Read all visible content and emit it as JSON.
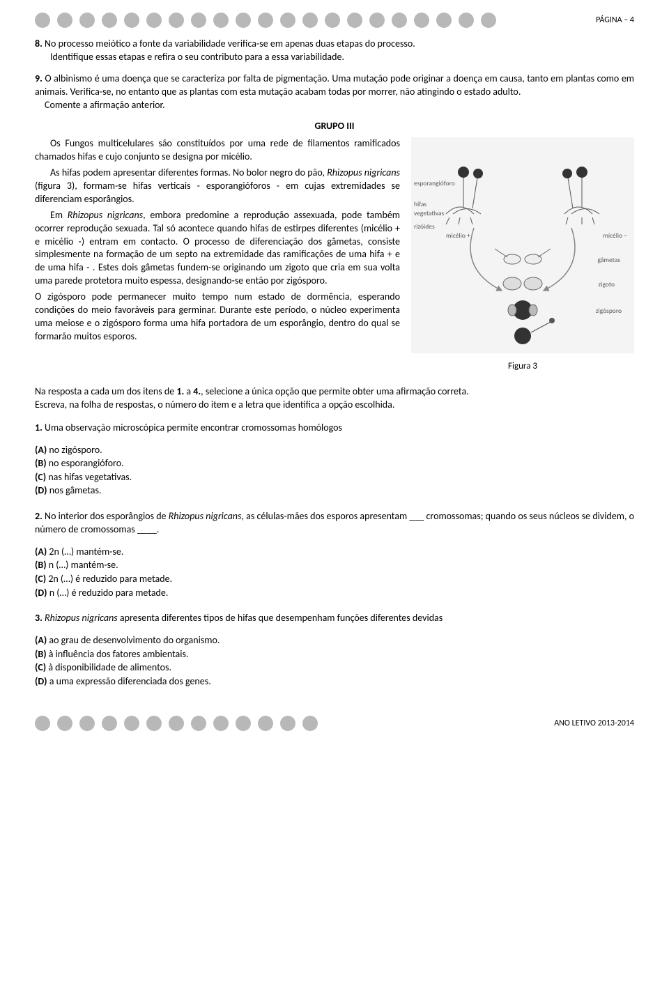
{
  "header": {
    "page_label": "PÁGINA – 4",
    "dot_color": "#b8b8b8",
    "top_dot_count": 21,
    "bottom_dot_count": 13
  },
  "questions_top": {
    "q8": {
      "num": "8.",
      "line1": "No processo meiótico a fonte da variabilidade verifica-se em apenas duas etapas do processo.",
      "line2": "Identifique essas etapas e refira o seu contributo para a essa variabilidade."
    },
    "q9": {
      "num": "9.",
      "text": "O albinismo é uma doença que se caracteriza por falta de pigmentação. Uma mutação pode originar a doença em causa, tanto em plantas como em animais. Verifica-se, no entanto que as plantas com esta mutação acabam todas por morrer, não atingindo o estado adulto.",
      "prompt": "Comente a afirmação anterior."
    }
  },
  "group3": {
    "title": "GRUPO III",
    "p1": "Os Fungos multicelulares são constituídos por uma rede de filamentos ramificados chamados hifas e cujo conjunto se designa por micélio.",
    "p2a": "As hifas podem apresentar diferentes formas. No bolor negro do pão, ",
    "p2_ital": "Rhizopus nigricans",
    "p2b": " (figura 3), formam-se hifas verticais - esporangióforos - em cujas extremidades se diferenciam esporângios.",
    "p3a": "Em ",
    "p3_ital": "Rhizopus nigricans",
    "p3b": ", embora predomine a reprodução assexuada, pode também ocorrer reprodução sexuada. Tal só acontece quando hifas de estirpes diferentes (micélio + e micélio -) entram em contacto. O processo de diferenciação dos gâmetas, consiste simplesmente na formação de um septo na extremidade das ramificações de uma hifa + e de uma hifa - . Estes dois gâmetas fundem-se originando um zigoto que cria em sua volta uma parede protetora muito espessa, designando-se então por zigósporo.",
    "p4": "O zigósporo pode permanecer muito tempo num estado de dormência, esperando condições do meio favoráveis para germinar. Durante este período, o núcleo experimenta uma meiose e o zigósporo forma uma hifa portadora de um esporângio, dentro do qual se formarão muitos esporos.",
    "figure_caption": "Figura 3",
    "figure": {
      "bg": "#f4f4f4",
      "labels": {
        "esporangioforo": "esporangióforo",
        "hifas_veg": "hifas\nvegetativas",
        "rizoides": "rizóides",
        "micelio_plus": "micélio +",
        "micelio_minus": "micélio −",
        "gametas": "gâmetas",
        "zigoto": "zigoto",
        "zigosporo": "zigósporo"
      }
    }
  },
  "instructions": {
    "line1": "Na resposta a cada um dos itens de 1. a 4., selecione a única opção que permite obter uma afirmação correta.",
    "line2": "Escreva, na folha de respostas, o número do item e a letra que identifica a opção escolhida."
  },
  "mcq": {
    "q1": {
      "num": "1.",
      "text": "Uma observação microscópica permite encontrar cromossomas homólogos",
      "opts": {
        "A": "no zigósporo.",
        "B": "no esporangióforo.",
        "C": "nas hifas vegetativas.",
        "D": "nos gâmetas."
      }
    },
    "q2": {
      "num": "2.",
      "text_a": "No interior dos esporângios de ",
      "text_ital": "Rhizopus nigricans",
      "text_b": ", as células-mães dos esporos apresentam ___ cromossomas; quando os seus núcleos se dividem, o número de cromossomas ____.",
      "opts": {
        "A": "2n (…) mantém-se.",
        "B": "n  (…) mantém-se.",
        "C": "2n (…) é reduzido para metade.",
        "D": "n  (…) é reduzido para metade."
      }
    },
    "q3": {
      "num": "3.",
      "text_ital": "Rhizopus nigricans",
      "text_b": " apresenta diferentes tipos de hifas que desempenham funções diferentes devidas",
      "opts": {
        "A": "ao grau de desenvolvimento do organismo.",
        "B": "à influência dos fatores ambientais.",
        "C": "à disponibilidade de alimentos.",
        "D": "a uma expressão diferenciada dos genes."
      }
    }
  },
  "footer": {
    "year": "ANO LETIVO 2013-2014"
  }
}
